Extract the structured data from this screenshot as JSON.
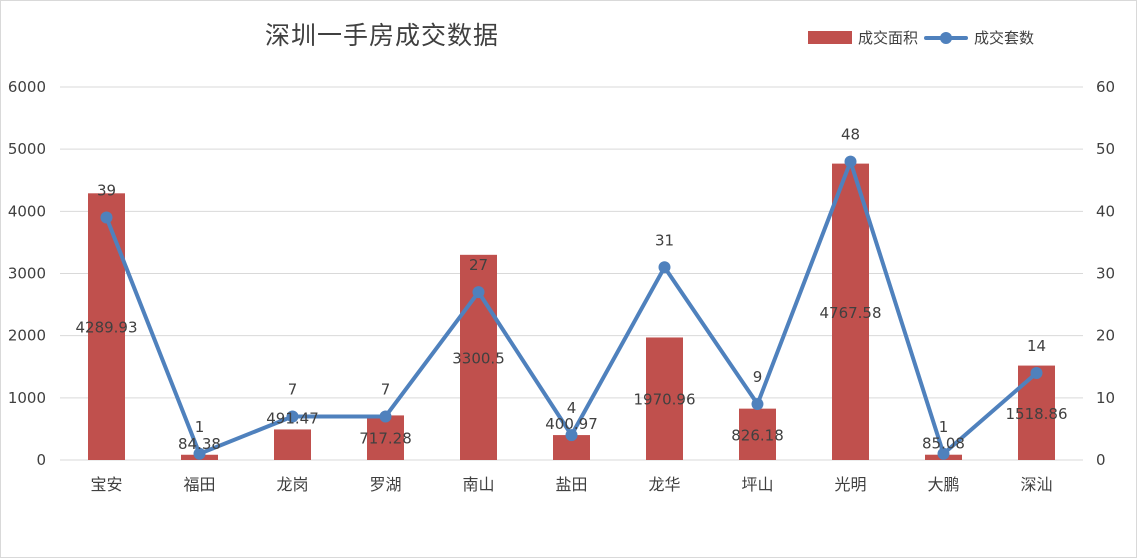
{
  "colors": {
    "bar": "#c0504d",
    "line": "#4f81bd",
    "grid": "#d9d9d9",
    "text": "#404040"
  },
  "chart_data": {
    "type": "bar",
    "title": "深圳一手房成交数据",
    "categories": [
      "宝安",
      "福田",
      "龙岗",
      "罗湖",
      "南山",
      "盐田",
      "龙华",
      "坪山",
      "光明",
      "大鹏",
      "深汕"
    ],
    "ylim_left": [
      0,
      6000
    ],
    "ylim_right": [
      0,
      60
    ],
    "left_ticks": [
      "0",
      "1000",
      "2000",
      "3000",
      "4000",
      "5000",
      "6000"
    ],
    "right_ticks": [
      "0",
      "10",
      "20",
      "30",
      "40",
      "50",
      "60"
    ],
    "grid": true,
    "legend_position": "top-right",
    "series": [
      {
        "name": "成交面积",
        "type": "bar",
        "axis": "left",
        "values": [
          4289.93,
          84.38,
          491.47,
          717.28,
          3300.5,
          400.97,
          1970.96,
          826.18,
          4767.58,
          85.08,
          1518.86
        ],
        "labels": [
          "4289.93",
          "84.38",
          "491.47",
          "717.28",
          "3300.5",
          "400.97",
          "1970.96",
          "826.18",
          "4767.58",
          "85.08",
          "1518.86"
        ]
      },
      {
        "name": "成交套数",
        "type": "line",
        "axis": "right",
        "values": [
          39,
          1,
          7,
          7,
          27,
          4,
          31,
          9,
          48,
          1,
          14
        ],
        "labels": [
          "39",
          "1",
          "7",
          "7",
          "27",
          "4",
          "31",
          "9",
          "48",
          "1",
          "14"
        ]
      }
    ]
  }
}
